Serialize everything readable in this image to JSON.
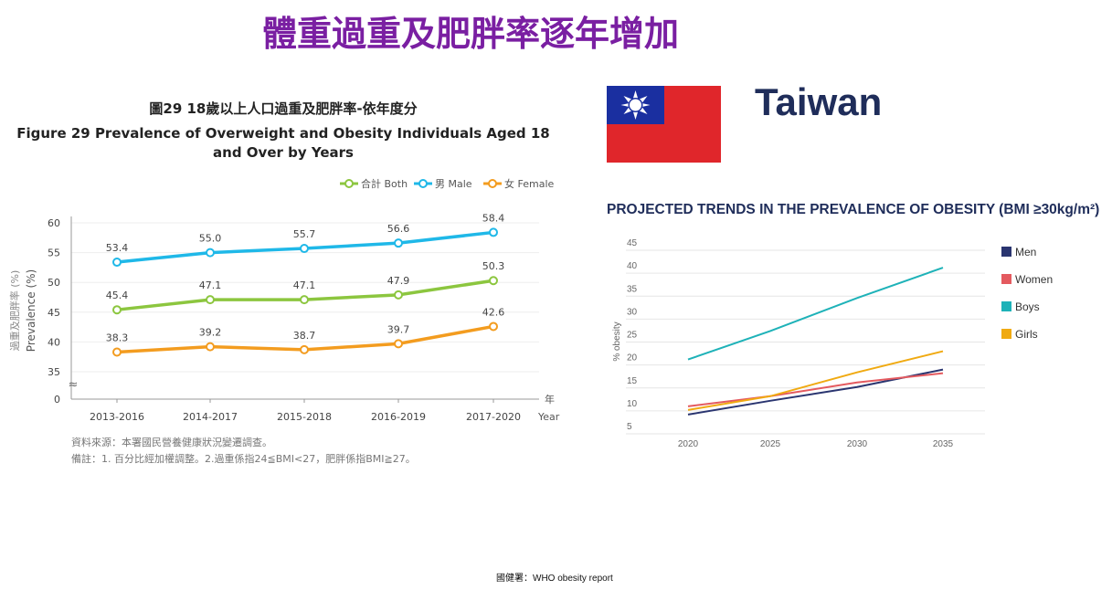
{
  "header": {
    "title": "體重過重及肥胖率逐年增加"
  },
  "right_panel": {
    "country": "Taiwan",
    "flag": "taiwan-flag"
  },
  "footer": {
    "source": "國健署：WHO obesity report"
  },
  "chart_data": [
    {
      "type": "line",
      "title_zh": "圖29  18歲以上人口過重及肥胖率-依年度分",
      "title": "Figure 29  Prevalence of Overweight and Obesity Individuals Aged 18 and Over by Years",
      "ylabel_zh": "過重及肥胖率 (%)",
      "ylabel": "Prevalence (%)",
      "xlabel_zh": "年",
      "xlabel": "Year",
      "categories": [
        "2013-2016",
        "2014-2017",
        "2015-2018",
        "2016-2019",
        "2017-2020"
      ],
      "yticks": [
        "0",
        "35",
        "40",
        "45",
        "50",
        "55",
        "60"
      ],
      "ylim": [
        35,
        60
      ],
      "axis_break": "≈",
      "legend_position": "top-right",
      "series": [
        {
          "name": "合計 Both",
          "color": "#8cc63f",
          "values": [
            45.4,
            47.1,
            47.1,
            47.9,
            50.3
          ],
          "labels": [
            "45.4",
            "47.1",
            "47.1",
            "47.9",
            "50.3"
          ]
        },
        {
          "name": "男 Male",
          "color": "#1fb8e8",
          "values": [
            53.4,
            55.0,
            55.7,
            56.6,
            58.4
          ],
          "labels": [
            "53.4",
            "55.0",
            "55.7",
            "56.6",
            "58.4"
          ]
        },
        {
          "name": "女 Female",
          "color": "#f39c1f",
          "values": [
            38.3,
            39.2,
            38.7,
            39.7,
            42.6
          ],
          "labels": [
            "38.3",
            "39.2",
            "38.7",
            "39.7",
            "42.6"
          ]
        }
      ],
      "notes": [
        "資料來源：本署國民營養健康狀況變遷調查。",
        "備註：1. 百分比經加權調整。2.過重係指24≦BMI<27，肥胖係指BMI≧27。"
      ]
    },
    {
      "type": "line",
      "title": "PROJECTED TRENDS IN THE PREVALENCE OF OBESITY (BMI ≥30kg/m²)",
      "ylabel": "% obesity",
      "categories": [
        "2020",
        "2025",
        "2030",
        "2035"
      ],
      "yticks": [
        "5",
        "10",
        "15",
        "20",
        "25",
        "30",
        "35",
        "40",
        "45"
      ],
      "ylim": [
        5,
        45
      ],
      "legend_position": "right",
      "series": [
        {
          "name": "Men",
          "color": "#2a3570",
          "values": [
            9.2,
            12.2,
            15.2,
            19.0
          ]
        },
        {
          "name": "Women",
          "color": "#e45a5f",
          "values": [
            11.0,
            13.2,
            16.2,
            18.2
          ]
        },
        {
          "name": "Boys",
          "color": "#1eb2b8",
          "values": [
            21.2,
            27.4,
            34.6,
            41.2
          ]
        },
        {
          "name": "Girls",
          "color": "#f0aa12",
          "values": [
            10.2,
            13.2,
            18.4,
            23.0
          ]
        }
      ]
    }
  ]
}
